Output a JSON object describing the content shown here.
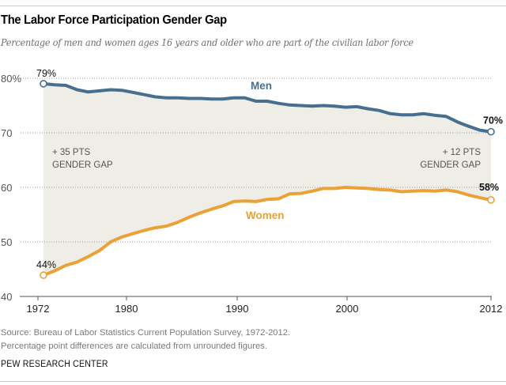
{
  "header": {
    "title": "The Labor Force Participation Gender Gap",
    "subtitle": "Percentage of men and women ages 16 years and older who are part of the civilian labor force"
  },
  "footer": {
    "source": "Source: Bureau of Labor Statistics Current Population Survey, 1972-2012.",
    "note": "Percentage point differences are calculated from unrounded figures.",
    "organization": "PEW RESEARCH CENTER"
  },
  "colors": {
    "men": "#476f8f",
    "women": "#eba137",
    "gap_fill": "#eeede6",
    "grid": "#999999",
    "axis": "#555555"
  },
  "chart_data": {
    "type": "line",
    "title": "The Labor Force Participation Gender Gap",
    "subtitle": "Percentage of men and women ages 16 years and older who are part of the civilian labor force",
    "xlabel": "",
    "ylabel": "",
    "xlim": [
      1972,
      2012
    ],
    "ylim": [
      40,
      80
    ],
    "yticks": [
      40,
      50,
      60,
      70,
      80
    ],
    "ytick_labels": [
      "40",
      "50",
      "60",
      "70",
      "80%"
    ],
    "xticks": [
      1972,
      1980,
      1990,
      2000,
      2012
    ],
    "xtick_labels": [
      "1972",
      "1980",
      "1990",
      "2000",
      "2012"
    ],
    "grid": "horizontal dotted",
    "shaded_gap_between_series": true,
    "x": [
      1972,
      1973,
      1974,
      1975,
      1976,
      1977,
      1978,
      1979,
      1980,
      1981,
      1982,
      1983,
      1984,
      1985,
      1986,
      1987,
      1988,
      1989,
      1990,
      1991,
      1992,
      1993,
      1994,
      1995,
      1996,
      1997,
      1998,
      1999,
      2000,
      2001,
      2002,
      2003,
      2004,
      2005,
      2006,
      2007,
      2008,
      2009,
      2010,
      2011,
      2012
    ],
    "series": [
      {
        "name": "Men",
        "label": "Men",
        "values": [
          79.0,
          78.8,
          78.7,
          77.9,
          77.5,
          77.7,
          77.9,
          77.8,
          77.4,
          77.0,
          76.6,
          76.4,
          76.4,
          76.3,
          76.3,
          76.2,
          76.2,
          76.4,
          76.4,
          75.8,
          75.8,
          75.4,
          75.1,
          75.0,
          74.9,
          75.0,
          74.9,
          74.7,
          74.8,
          74.4,
          74.1,
          73.5,
          73.3,
          73.3,
          73.5,
          73.2,
          73.0,
          72.0,
          71.2,
          70.5,
          70.2
        ],
        "start_label": "79%",
        "end_label": "70%"
      },
      {
        "name": "Women",
        "label": "Women",
        "values": [
          43.9,
          44.7,
          45.7,
          46.3,
          47.3,
          48.4,
          50.0,
          50.9,
          51.5,
          52.1,
          52.6,
          52.9,
          53.6,
          54.5,
          55.3,
          56.0,
          56.6,
          57.4,
          57.5,
          57.4,
          57.8,
          57.9,
          58.8,
          58.9,
          59.3,
          59.8,
          59.8,
          60.0,
          59.9,
          59.8,
          59.6,
          59.5,
          59.2,
          59.3,
          59.4,
          59.3,
          59.5,
          59.2,
          58.6,
          58.1,
          57.7
        ],
        "start_label": "44%",
        "end_label": "58%"
      }
    ],
    "annotations": [
      {
        "text_line1": "+ 35 PTS",
        "text_line2": "GENDER GAP",
        "year": 1972,
        "align": "left"
      },
      {
        "text_line1": "+ 12 PTS",
        "text_line2": "GENDER GAP",
        "year": 2012,
        "align": "right"
      }
    ]
  }
}
